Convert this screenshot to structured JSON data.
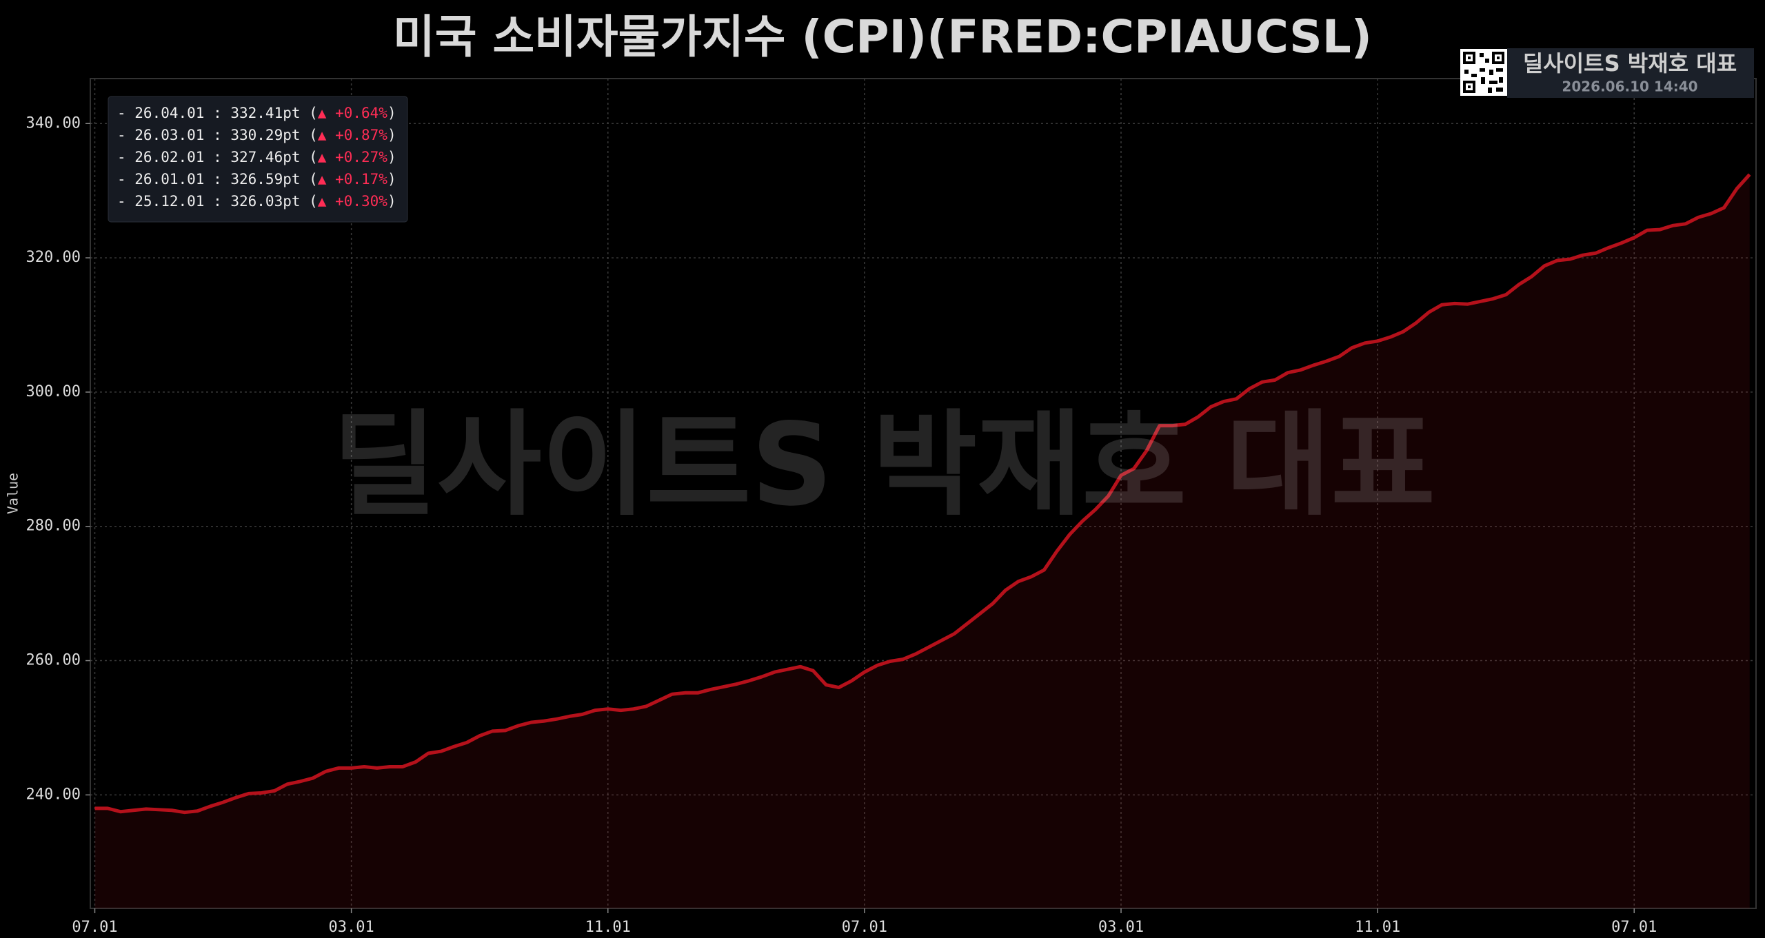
{
  "chart_data": {
    "type": "line",
    "title": "미국 소비자물가지수 (CPI)(FRED:CPIAUCSL)",
    "y_label": "Value",
    "watermark": "딜사이트S 박재호 대표",
    "badge": {
      "name": "딜사이트S 박재호 대표",
      "timestamp": "2026.06.10 14:40"
    },
    "legend_box": [
      {
        "prefix": "- 26.04.01 : 332.41pt (",
        "change": "▲ +0.64%",
        "suffix": ")"
      },
      {
        "prefix": "- 26.03.01 : 330.29pt (",
        "change": "▲ +0.87%",
        "suffix": ")"
      },
      {
        "prefix": "- 26.02.01 : 327.46pt (",
        "change": "▲ +0.27%",
        "suffix": ")"
      },
      {
        "prefix": "- 26.01.01 : 326.59pt (",
        "change": "▲ +0.17%",
        "suffix": ")"
      },
      {
        "prefix": "- 25.12.01 : 326.03pt (",
        "change": "▲ +0.30%",
        "suffix": ")"
      }
    ],
    "categories": [
      "07.01",
      null,
      null,
      null,
      null,
      null,
      null,
      null,
      null,
      null,
      null,
      null,
      null,
      null,
      null,
      null,
      null,
      null,
      null,
      null,
      "03.01",
      null,
      null,
      null,
      null,
      null,
      null,
      null,
      null,
      null,
      null,
      null,
      null,
      null,
      null,
      null,
      null,
      null,
      null,
      null,
      "11.01",
      null,
      null,
      null,
      null,
      null,
      null,
      null,
      null,
      null,
      null,
      null,
      null,
      null,
      null,
      null,
      null,
      null,
      null,
      null,
      "07.01",
      null,
      null,
      null,
      null,
      null,
      null,
      null,
      null,
      null,
      null,
      null,
      null,
      null,
      null,
      null,
      null,
      null,
      null,
      null,
      "03.01",
      null,
      null,
      null,
      null,
      null,
      null,
      null,
      null,
      null,
      null,
      null,
      null,
      null,
      null,
      null,
      null,
      null,
      null,
      null,
      "11.01",
      null,
      null,
      null,
      null,
      null,
      null,
      null,
      null,
      null,
      null,
      null,
      null,
      null,
      null,
      null,
      null,
      null,
      null,
      null,
      "07.01",
      null,
      null,
      null,
      null,
      null,
      null,
      null,
      null,
      null
    ],
    "values": [
      238.0,
      238.0,
      237.5,
      237.7,
      237.9,
      237.8,
      237.7,
      237.4,
      237.6,
      238.3,
      238.9,
      239.6,
      240.2,
      240.3,
      240.6,
      241.6,
      242.0,
      242.5,
      243.5,
      244.0,
      244.0,
      244.2,
      244.0,
      244.2,
      244.2,
      244.9,
      246.2,
      246.5,
      247.2,
      247.8,
      248.8,
      249.5,
      249.6,
      250.3,
      250.8,
      251.0,
      251.3,
      251.7,
      252.0,
      252.6,
      252.8,
      252.6,
      252.8,
      253.2,
      254.1,
      255.0,
      255.2,
      255.2,
      255.7,
      256.1,
      256.5,
      257.0,
      257.6,
      258.3,
      258.7,
      259.1,
      258.5,
      256.4,
      256.0,
      257.0,
      258.3,
      259.3,
      259.9,
      260.2,
      261.0,
      262.0,
      263.0,
      264.0,
      265.5,
      267.0,
      268.5,
      270.5,
      271.8,
      272.5,
      273.5,
      276.3,
      278.8,
      280.8,
      282.5,
      284.5,
      287.6,
      288.6,
      291.3,
      295.0,
      295.0,
      295.2,
      296.3,
      297.8,
      298.6,
      299.0,
      300.5,
      301.5,
      301.8,
      302.9,
      303.3,
      304.0,
      304.6,
      305.3,
      306.6,
      307.3,
      307.6,
      308.2,
      309.0,
      310.3,
      311.9,
      313.0,
      313.2,
      313.1,
      313.5,
      313.9,
      314.5,
      316.0,
      317.2,
      318.8,
      319.6,
      319.8,
      320.4,
      320.7,
      321.5,
      322.2,
      323.0,
      324.1,
      324.2,
      324.8,
      325.06,
      326.03,
      326.59,
      327.46,
      330.29,
      332.41
    ],
    "color": "#b5111b",
    "ylim": [
      223.1,
      346.7
    ],
    "yticks": [
      {
        "value": 240,
        "label": "240.00"
      },
      {
        "value": 260,
        "label": "260.00"
      },
      {
        "value": 280,
        "label": "280.00"
      },
      {
        "value": 300,
        "label": "300.00"
      },
      {
        "value": 320,
        "label": "320.00"
      },
      {
        "value": 340,
        "label": "340.00"
      }
    ],
    "grid": true
  }
}
